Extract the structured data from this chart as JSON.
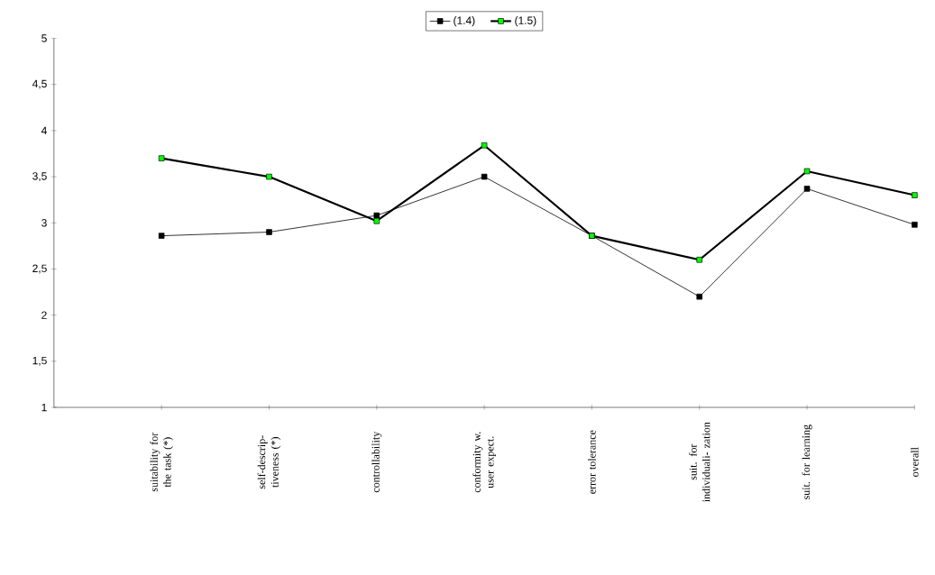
{
  "chart_data": {
    "type": "line",
    "categories": [
      "suitability for the task (*)",
      "self-descrip- tiveness (*)",
      "controllability",
      "conformity w. user expect.",
      "error tolerance",
      "suit. for individuali- zation",
      "suit. for learning",
      "overall"
    ],
    "series": [
      {
        "name": "(1.4)",
        "color": "#000000",
        "marker": "square",
        "values": [
          2.86,
          2.9,
          3.08,
          3.5,
          2.86,
          2.2,
          3.37,
          2.98
        ]
      },
      {
        "name": "(1.5)",
        "color": "#000000",
        "marker": "square",
        "values": [
          3.7,
          3.5,
          3.02,
          3.84,
          2.86,
          2.6,
          3.56,
          3.3
        ]
      }
    ],
    "ylim": [
      1,
      5
    ],
    "yticks": [
      {
        "value": 1,
        "label": "1"
      },
      {
        "value": 1.5,
        "label": "1,5"
      },
      {
        "value": 2,
        "label": "2"
      },
      {
        "value": 2.5,
        "label": "2,5"
      },
      {
        "value": 3,
        "label": "3"
      },
      {
        "value": 3.5,
        "label": "3,5"
      },
      {
        "value": 4,
        "label": "4"
      },
      {
        "value": 4.5,
        "label": "4,5"
      },
      {
        "value": 5,
        "label": "5"
      }
    ],
    "legend": "top",
    "grid": false,
    "line_style": "solid"
  }
}
